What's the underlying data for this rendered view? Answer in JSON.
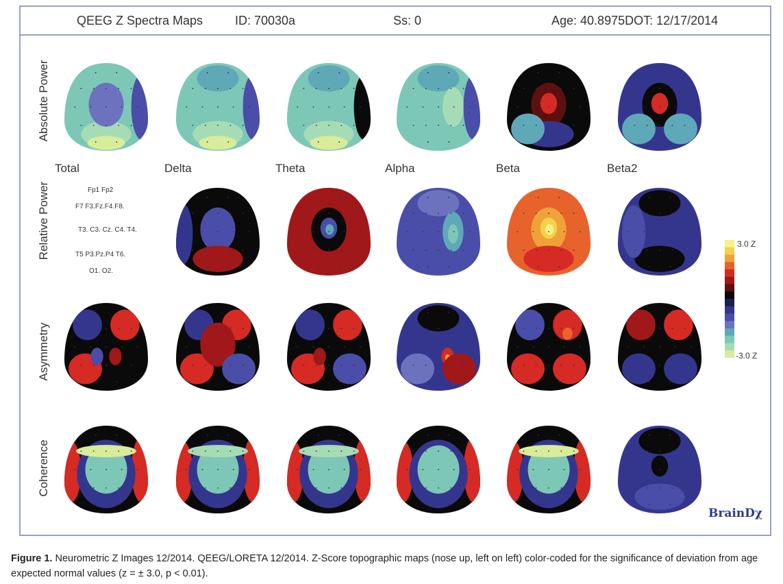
{
  "header": {
    "title": "QEEG Z Spectra Maps",
    "id": "ID: 70030a",
    "ss": "Ss: 0",
    "age_dot": "Age: 40.8975DOT: 12/17/2014"
  },
  "row_labels": [
    "Absolute Power",
    "Relative Power",
    "Asymmetry",
    "Coherence"
  ],
  "column_labels": [
    "Total",
    "Delta",
    "Theta",
    "Alpha",
    "Beta",
    "Beta2"
  ],
  "electrode_legend": [
    "Fp1 Fp2",
    "F7 F3.Fz.F4.F8.",
    "T3. C3. Cz. C4. T4.",
    "T5 P3.Pz.P4 T6.",
    "O1.  O2."
  ],
  "scale": {
    "top": "3.0 Z",
    "bottom": "-3.0 Z",
    "colors": [
      "#f7f08a",
      "#f3d24a",
      "#f1a13a",
      "#e8622b",
      "#d62a24",
      "#a0181a",
      "#5e0f0f",
      "#0a0a0a",
      "#1e1e4c",
      "#34368e",
      "#4a4ea8",
      "#6d72bf",
      "#5fa8b8",
      "#7dc7b7",
      "#a6dcb5",
      "#d8ec9a"
    ]
  },
  "maps": [
    [
      {
        "bg": "#7dc7b7",
        "blobs": [
          {
            "c": "#a6dcb5",
            "p": "b"
          },
          {
            "c": "#d8ec9a",
            "p": "b2"
          },
          {
            "c": "#6d72bf",
            "p": "c"
          },
          {
            "c": "#4a4ea8",
            "p": "re"
          }
        ]
      },
      {
        "bg": "#7dc7b7",
        "blobs": [
          {
            "c": "#a6dcb5",
            "p": "b"
          },
          {
            "c": "#d8ec9a",
            "p": "b2"
          },
          {
            "c": "#5fa8b8",
            "p": "t"
          },
          {
            "c": "#4a4ea8",
            "p": "re"
          }
        ]
      },
      {
        "bg": "#7dc7b7",
        "blobs": [
          {
            "c": "#a6dcb5",
            "p": "b"
          },
          {
            "c": "#d8ec9a",
            "p": "b2"
          },
          {
            "c": "#5fa8b8",
            "p": "t"
          },
          {
            "c": "#0a0a0a",
            "p": "re"
          }
        ]
      },
      {
        "bg": "#7dc7b7",
        "blobs": [
          {
            "c": "#5fa8b8",
            "p": "t"
          },
          {
            "c": "#a6dcb5",
            "p": "r"
          },
          {
            "c": "#4a4ea8",
            "p": "re"
          }
        ]
      },
      {
        "bg": "#0a0a0a",
        "blobs": [
          {
            "c": "#5e0f0f",
            "p": "c"
          },
          {
            "c": "#d62a24",
            "p": "c2"
          },
          {
            "c": "#34368e",
            "p": "b"
          },
          {
            "c": "#5fa8b8",
            "p": "bl"
          }
        ]
      },
      {
        "bg": "#34368e",
        "blobs": [
          {
            "c": "#0a0a0a",
            "p": "c"
          },
          {
            "c": "#d62a24",
            "p": "c2"
          },
          {
            "c": "#5fa8b8",
            "p": "bl"
          },
          {
            "c": "#5fa8b8",
            "p": "br"
          }
        ]
      }
    ],
    [
      null,
      {
        "bg": "#0a0a0a",
        "blobs": [
          {
            "c": "#34368e",
            "p": "le"
          },
          {
            "c": "#4a4ea8",
            "p": "c"
          },
          {
            "c": "#a0181a",
            "p": "b"
          }
        ]
      },
      {
        "bg": "#a0181a",
        "blobs": [
          {
            "c": "#0a0a0a",
            "p": "c"
          },
          {
            "c": "#4a4ea8",
            "p": "c2"
          },
          {
            "c": "#5fa8b8",
            "p": "cs"
          }
        ]
      },
      {
        "bg": "#4a4ea8",
        "blobs": [
          {
            "c": "#6d72bf",
            "p": "t"
          },
          {
            "c": "#5fa8b8",
            "p": "r"
          },
          {
            "c": "#7dc7b7",
            "p": "rs"
          }
        ]
      },
      {
        "bg": "#e8622b",
        "blobs": [
          {
            "c": "#f1a13a",
            "p": "c"
          },
          {
            "c": "#f3d24a",
            "p": "c2"
          },
          {
            "c": "#f7f08a",
            "p": "cs"
          },
          {
            "c": "#d62a24",
            "p": "b"
          }
        ]
      },
      {
        "bg": "#34368e",
        "blobs": [
          {
            "c": "#0a0a0a",
            "p": "t"
          },
          {
            "c": "#0a0a0a",
            "p": "b"
          },
          {
            "c": "#4a4ea8",
            "p": "l"
          }
        ]
      }
    ],
    [
      {
        "bg": "#0a0a0a",
        "blobs": [
          {
            "c": "#d62a24",
            "p": "tr"
          },
          {
            "c": "#34368e",
            "p": "tl"
          },
          {
            "c": "#d62a24",
            "p": "bl"
          },
          {
            "c": "#4a4ea8",
            "p": "cl"
          },
          {
            "c": "#a0181a",
            "p": "cr"
          }
        ]
      },
      {
        "bg": "#0a0a0a",
        "blobs": [
          {
            "c": "#d62a24",
            "p": "tr"
          },
          {
            "c": "#34368e",
            "p": "tl"
          },
          {
            "c": "#d62a24",
            "p": "bl"
          },
          {
            "c": "#a0181a",
            "p": "c"
          },
          {
            "c": "#4a4ea8",
            "p": "br"
          }
        ]
      },
      {
        "bg": "#0a0a0a",
        "blobs": [
          {
            "c": "#d62a24",
            "p": "tr"
          },
          {
            "c": "#34368e",
            "p": "tl"
          },
          {
            "c": "#d62a24",
            "p": "bl"
          },
          {
            "c": "#4a4ea8",
            "p": "br"
          },
          {
            "c": "#a0181a",
            "p": "cl"
          }
        ]
      },
      {
        "bg": "#34368e",
        "blobs": [
          {
            "c": "#0a0a0a",
            "p": "t"
          },
          {
            "c": "#d62a24",
            "p": "cr"
          },
          {
            "c": "#f1a13a",
            "p": "crs"
          },
          {
            "c": "#6d72bf",
            "p": "bl"
          },
          {
            "c": "#a0181a",
            "p": "br"
          }
        ]
      },
      {
        "bg": "#0a0a0a",
        "blobs": [
          {
            "c": "#d62a24",
            "p": "tr"
          },
          {
            "c": "#e8622b",
            "p": "trs"
          },
          {
            "c": "#4a4ea8",
            "p": "tl"
          },
          {
            "c": "#d62a24",
            "p": "bl"
          },
          {
            "c": "#d62a24",
            "p": "br"
          }
        ]
      },
      {
        "bg": "#0a0a0a",
        "blobs": [
          {
            "c": "#a0181a",
            "p": "tl"
          },
          {
            "c": "#d62a24",
            "p": "tr"
          },
          {
            "c": "#34368e",
            "p": "bl"
          },
          {
            "c": "#34368e",
            "p": "br"
          }
        ]
      }
    ],
    [
      {
        "bg": "#0a0a0a",
        "blobs": [
          {
            "c": "#d62a24",
            "p": "le"
          },
          {
            "c": "#d62a24",
            "p": "re"
          },
          {
            "c": "#34368e",
            "p": "in"
          },
          {
            "c": "#7dc7b7",
            "p": "in2"
          },
          {
            "c": "#d8ec9a",
            "p": "band"
          }
        ]
      },
      {
        "bg": "#0a0a0a",
        "blobs": [
          {
            "c": "#d62a24",
            "p": "le"
          },
          {
            "c": "#d62a24",
            "p": "re"
          },
          {
            "c": "#34368e",
            "p": "in"
          },
          {
            "c": "#7dc7b7",
            "p": "in2"
          },
          {
            "c": "#a6dcb5",
            "p": "band"
          }
        ]
      },
      {
        "bg": "#0a0a0a",
        "blobs": [
          {
            "c": "#d62a24",
            "p": "le"
          },
          {
            "c": "#d62a24",
            "p": "re"
          },
          {
            "c": "#34368e",
            "p": "in"
          },
          {
            "c": "#7dc7b7",
            "p": "in2"
          },
          {
            "c": "#a6dcb5",
            "p": "band"
          }
        ]
      },
      {
        "bg": "#0a0a0a",
        "blobs": [
          {
            "c": "#d62a24",
            "p": "le"
          },
          {
            "c": "#d62a24",
            "p": "re"
          },
          {
            "c": "#34368e",
            "p": "in"
          },
          {
            "c": "#7dc7b7",
            "p": "in2"
          }
        ]
      },
      {
        "bg": "#0a0a0a",
        "blobs": [
          {
            "c": "#d62a24",
            "p": "le"
          },
          {
            "c": "#d62a24",
            "p": "re"
          },
          {
            "c": "#34368e",
            "p": "in"
          },
          {
            "c": "#7dc7b7",
            "p": "in2"
          },
          {
            "c": "#d8ec9a",
            "p": "band"
          }
        ]
      },
      {
        "bg": "#34368e",
        "blobs": [
          {
            "c": "#0a0a0a",
            "p": "t"
          },
          {
            "c": "#0a0a0a",
            "p": "c2"
          },
          {
            "c": "#4a4ea8",
            "p": "b"
          }
        ]
      }
    ]
  ],
  "brand": "BrainDχ",
  "caption": {
    "label": "Figure 1.",
    "text": "Neurometric Z Images 12/2014. QEEG/LORETA 12/2014. Z-Score topographic maps (nose up, left on left) color-coded for the significance of deviation from age expected normal values (z = ± 3.0, p < 0.01)."
  }
}
